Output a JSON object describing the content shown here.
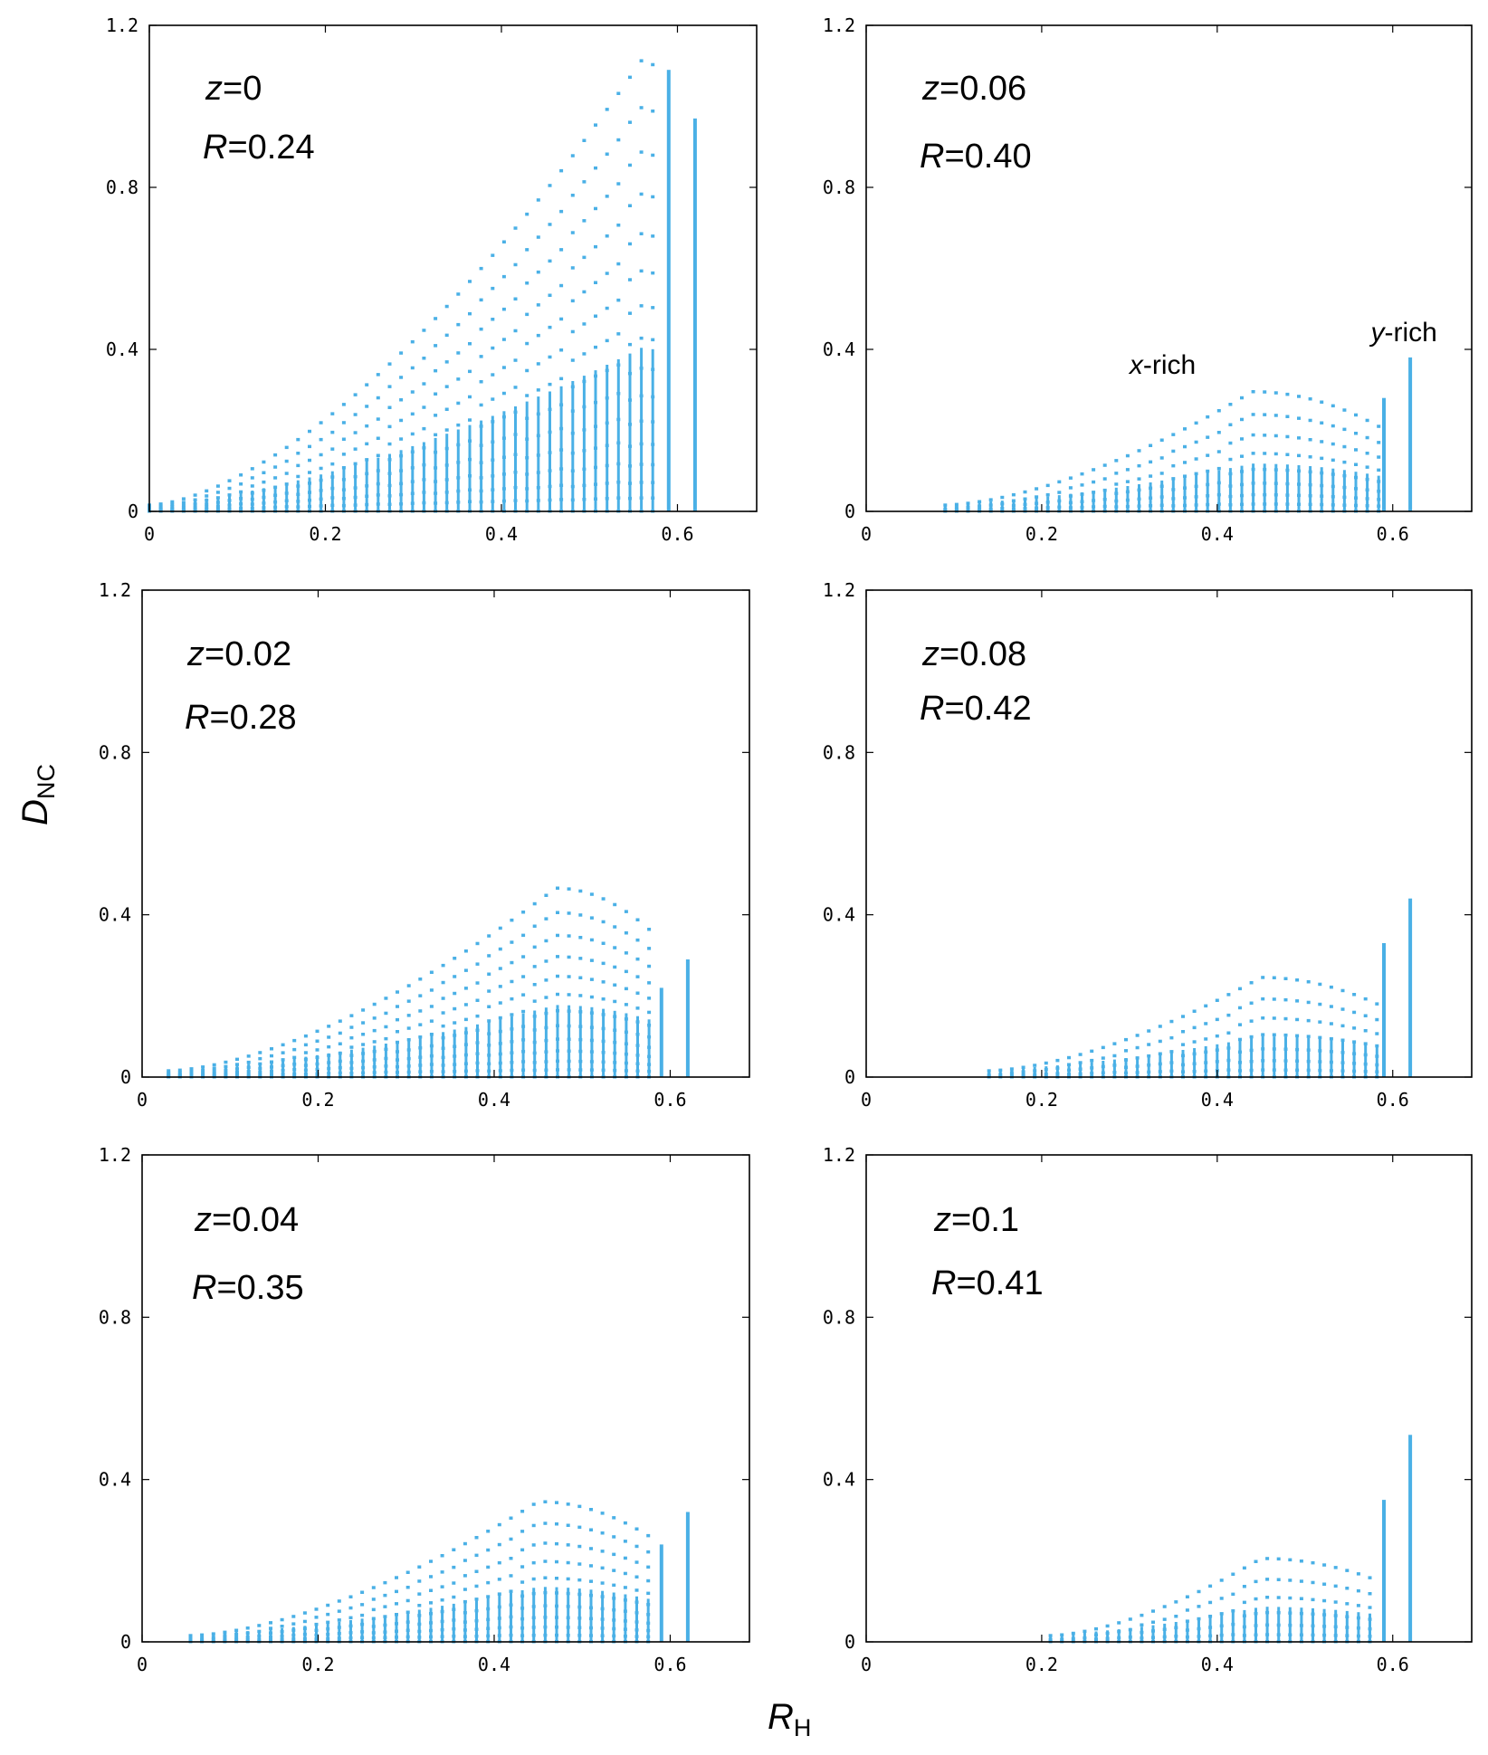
{
  "figure": {
    "ylabel_main": "D",
    "ylabel_sub": "NC",
    "xlabel_main": "R",
    "xlabel_sub": "H",
    "point_color": "#4ab0e6"
  },
  "chart_data": [
    {
      "type": "scatter",
      "title": "",
      "z_label": "z",
      "z_value": "=0",
      "r_label": "R",
      "r_value": "=0.24",
      "xlim": [
        0,
        0.69
      ],
      "ylim": [
        0,
        1.2
      ],
      "xticks": [
        0,
        0.2,
        0.4,
        0.6
      ],
      "xtick_labels": [
        "0",
        "0.2",
        "0.4",
        "0.6"
      ],
      "yticks": [
        0,
        0.4,
        0.8,
        1.2
      ],
      "ytick_labels": [
        "0",
        "0.4",
        "0.8",
        "1.2"
      ],
      "x_start": 0.0,
      "x_end": 0.62,
      "peak_x": 0.56,
      "envelope_max": 1.1,
      "curve_count": 15,
      "right_columns": [
        {
          "x": 0.59,
          "top": 1.09
        },
        {
          "x": 0.62,
          "top": 0.97
        }
      ],
      "annotations": []
    },
    {
      "type": "scatter",
      "title": "",
      "z_label": "z",
      "z_value": "=0.06",
      "r_label": "R",
      "r_value": "=0.40",
      "xlim": [
        0,
        0.69
      ],
      "ylim": [
        0,
        1.2
      ],
      "xticks": [
        0,
        0.2,
        0.4,
        0.6
      ],
      "xtick_labels": [
        "0",
        "0.2",
        "0.4",
        "0.6"
      ],
      "yticks": [
        0,
        0.4,
        0.8,
        1.2
      ],
      "ytick_labels": [
        "0",
        "0.4",
        "0.8",
        "1.2"
      ],
      "x_start": 0.09,
      "x_end": 0.62,
      "peak_x": 0.44,
      "envelope_max": 0.28,
      "curve_count": 8,
      "right_columns": [
        {
          "x": 0.59,
          "top": 0.28
        },
        {
          "x": 0.62,
          "top": 0.38
        }
      ],
      "annotations": [
        {
          "italic": "x",
          "text": "-rich",
          "x": 0.3,
          "y": 0.34
        },
        {
          "italic": "y",
          "text": "-rich",
          "x": 0.575,
          "y": 0.42
        }
      ]
    },
    {
      "type": "scatter",
      "title": "",
      "z_label": "z",
      "z_value": "=0.02",
      "r_label": "R",
      "r_value": "=0.28",
      "xlim": [
        0,
        0.69
      ],
      "ylim": [
        0,
        1.2
      ],
      "xticks": [
        0,
        0.2,
        0.4,
        0.6
      ],
      "xtick_labels": [
        "0",
        "0.2",
        "0.4",
        "0.6"
      ],
      "yticks": [
        0,
        0.4,
        0.8,
        1.2
      ],
      "ytick_labels": [
        "0",
        "0.4",
        "0.8",
        "1.2"
      ],
      "x_start": 0.03,
      "x_end": 0.62,
      "peak_x": 0.47,
      "envelope_max": 0.45,
      "curve_count": 12,
      "right_columns": [
        {
          "x": 0.59,
          "top": 0.22
        },
        {
          "x": 0.62,
          "top": 0.29
        }
      ],
      "annotations": []
    },
    {
      "type": "scatter",
      "title": "",
      "z_label": "z",
      "z_value": "=0.08",
      "r_label": "R",
      "r_value": "=0.42",
      "xlim": [
        0,
        0.69
      ],
      "ylim": [
        0,
        1.2
      ],
      "xticks": [
        0,
        0.2,
        0.4,
        0.6
      ],
      "xtick_labels": [
        "0",
        "0.2",
        "0.4",
        "0.6"
      ],
      "yticks": [
        0,
        0.4,
        0.8,
        1.2
      ],
      "ytick_labels": [
        "0",
        "0.4",
        "0.8",
        "1.2"
      ],
      "x_start": 0.14,
      "x_end": 0.62,
      "peak_x": 0.45,
      "envelope_max": 0.23,
      "curve_count": 7,
      "right_columns": [
        {
          "x": 0.59,
          "top": 0.33
        },
        {
          "x": 0.62,
          "top": 0.44
        }
      ],
      "annotations": []
    },
    {
      "type": "scatter",
      "title": "",
      "z_label": "z",
      "z_value": "=0.04",
      "r_label": "R",
      "r_value": "=0.35",
      "xlim": [
        0,
        0.69
      ],
      "ylim": [
        0,
        1.2
      ],
      "xticks": [
        0,
        0.2,
        0.4,
        0.6
      ],
      "xtick_labels": [
        "0",
        "0.2",
        "0.4",
        "0.6"
      ],
      "yticks": [
        0,
        0.4,
        0.8,
        1.2
      ],
      "ytick_labels": [
        "0",
        "0.4",
        "0.8",
        "1.2"
      ],
      "x_start": 0.055,
      "x_end": 0.62,
      "peak_x": 0.45,
      "envelope_max": 0.33,
      "curve_count": 10,
      "right_columns": [
        {
          "x": 0.59,
          "top": 0.24
        },
        {
          "x": 0.62,
          "top": 0.32
        }
      ],
      "annotations": []
    },
    {
      "type": "scatter",
      "title": "",
      "z_label": "z",
      "z_value": "=0.1",
      "r_label": "R",
      "r_value": "=0.41",
      "xlim": [
        0,
        0.69
      ],
      "ylim": [
        0,
        1.2
      ],
      "xticks": [
        0,
        0.2,
        0.4,
        0.6
      ],
      "xtick_labels": [
        "0",
        "0.2",
        "0.4",
        "0.6"
      ],
      "yticks": [
        0,
        0.4,
        0.8,
        1.2
      ],
      "ytick_labels": [
        "0",
        "0.4",
        "0.8",
        "1.2"
      ],
      "x_start": 0.21,
      "x_end": 0.62,
      "peak_x": 0.45,
      "envelope_max": 0.19,
      "curve_count": 6,
      "right_columns": [
        {
          "x": 0.59,
          "top": 0.35
        },
        {
          "x": 0.62,
          "top": 0.51
        }
      ],
      "annotations": []
    }
  ]
}
